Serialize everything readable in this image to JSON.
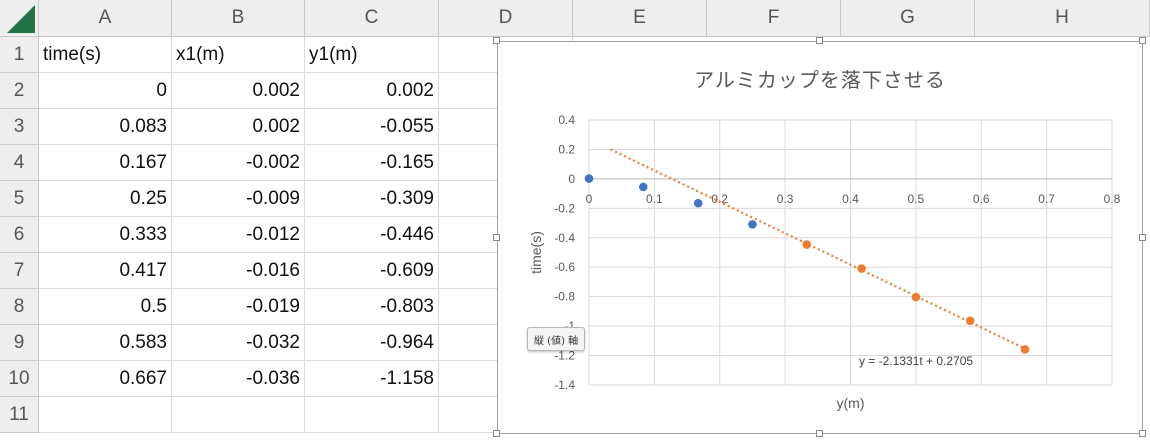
{
  "columns": [
    "A",
    "B",
    "C",
    "D",
    "E",
    "F",
    "G",
    "H"
  ],
  "rows": [
    "1",
    "2",
    "3",
    "4",
    "5",
    "6",
    "7",
    "8",
    "9",
    "10",
    "11"
  ],
  "headers": [
    "time(s)",
    "x1(m)",
    "y1(m)"
  ],
  "table": [
    [
      "0",
      "0.002",
      "0.002"
    ],
    [
      "0.083",
      "0.002",
      "-0.055"
    ],
    [
      "0.167",
      "-0.002",
      "-0.165"
    ],
    [
      "0.25",
      "-0.009",
      "-0.309"
    ],
    [
      "0.333",
      "-0.012",
      "-0.446"
    ],
    [
      "0.417",
      "-0.016",
      "-0.609"
    ],
    [
      "0.5",
      "-0.019",
      "-0.803"
    ],
    [
      "0.583",
      "-0.032",
      "-0.964"
    ],
    [
      "0.667",
      "-0.036",
      "-1.158"
    ]
  ],
  "tooltip": "縦 (値) 軸",
  "colors": {
    "series1": "#4472c4",
    "series2": "#ed7d31",
    "trendline": "#ed7d31",
    "excel_green": "#217346"
  },
  "chart_data": {
    "type": "scatter",
    "title": "アルミカップを落下させる",
    "xlabel": "y(m)",
    "ylabel": "time(s)",
    "xlim": [
      0,
      0.8
    ],
    "ylim": [
      -1.4,
      0.4
    ],
    "x_ticks": [
      "0",
      "0.1",
      "0.2",
      "0.3",
      "0.4",
      "0.5",
      "0.6",
      "0.7",
      "0.8"
    ],
    "y_ticks": [
      "0.4",
      "0.2",
      "0",
      "-0.2",
      "-0.4",
      "-0.6",
      "-0.8",
      "-1",
      "-1.2",
      "-1.4"
    ],
    "x_tick_values": [
      0,
      0.1,
      0.2,
      0.3,
      0.4,
      0.5,
      0.6,
      0.7,
      0.8
    ],
    "y_tick_values": [
      0.4,
      0.2,
      0,
      -0.2,
      -0.4,
      -0.6,
      -0.8,
      -1,
      -1.2,
      -1.4
    ],
    "grid": true,
    "series": [
      {
        "x": [
          0,
          0.083,
          0.167,
          0.25
        ],
        "y": [
          0.002,
          -0.055,
          -0.165,
          -0.309
        ]
      },
      {
        "x": [
          0.333,
          0.417,
          0.5,
          0.583,
          0.667
        ],
        "y": [
          -0.446,
          -0.609,
          -0.803,
          -0.964,
          -1.158
        ]
      }
    ],
    "trendline": {
      "slope": -2.1331,
      "intercept": 0.2705,
      "x_range": [
        0.033,
        0.667
      ],
      "label": "y = -2.1331t + 0.2705"
    }
  }
}
